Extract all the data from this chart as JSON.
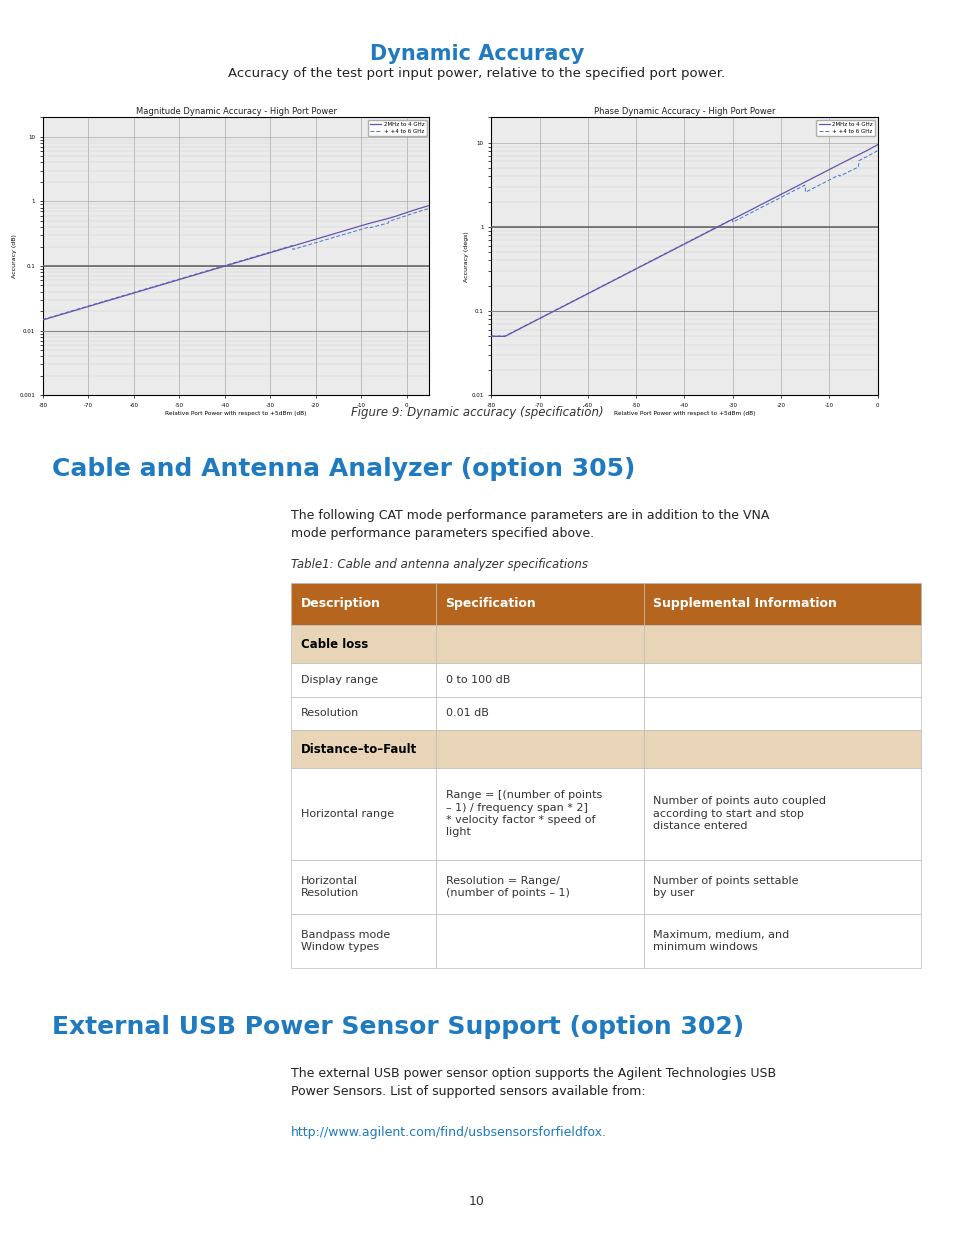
{
  "page_bg": "#ffffff",
  "title_dynamic": "Dynamic Accuracy",
  "title_dynamic_color": "#1f7abf",
  "title_dynamic_fontsize": 15,
  "subtitle_dynamic": "Accuracy of the test port input power, relative to the specified port power.",
  "subtitle_dynamic_fontsize": 9.5,
  "fig_caption": "Figure 9: Dynamic accuracy (specification)",
  "fig_caption_style": "italic",
  "fig_caption_fontsize": 8.5,
  "chart1_title": "Magnitude Dynamic Accuracy - High Port Power",
  "chart2_title": "Phase Dynamic Accuracy - High Port Power",
  "chart_title_fontsize": 6.0,
  "chart_ylabel1": "Accuracy (dB)",
  "chart_ylabel2": "Accuracy (degs)",
  "chart_xlabel": "Relative Port Power with respect to +5dBm (dB)",
  "legend_line1": "2MHz to 4 GHz",
  "legend_line2": "+ +4 to 6 GHz",
  "legend_color1": "#6655aa",
  "legend_color2": "#4477cc",
  "section1_title": "Cable and Antenna Analyzer (option 305)",
  "section1_title_color": "#1f7abf",
  "section1_title_fontsize": 18,
  "section1_body": "The following CAT mode performance parameters are in addition to the VNA\nmode performance parameters specified above.",
  "section1_body_fontsize": 9,
  "table_caption": "Table1: Cable and antenna analyzer specifications",
  "table_caption_fontsize": 8.5,
  "table_caption_style": "italic",
  "header_bg": "#b5651d",
  "header_text_color": "#ffffff",
  "subheader_bg": "#e8d5b7",
  "subheader_text_color": "#000000",
  "row_bg": "#ffffff",
  "table_headers": [
    "Description",
    "Specification",
    "Supplemental Information"
  ],
  "table_rows": [
    {
      "type": "subheader",
      "cols": [
        "Cable loss",
        "",
        ""
      ]
    },
    {
      "type": "data",
      "cols": [
        "Display range",
        "0 to 100 dB",
        ""
      ]
    },
    {
      "type": "data",
      "cols": [
        "Resolution",
        "0.01 dB",
        ""
      ]
    },
    {
      "type": "subheader",
      "cols": [
        "Distance–to–Fault",
        "",
        ""
      ]
    },
    {
      "type": "data",
      "cols": [
        "Horizontal range",
        "Range = [(number of points\n– 1) / frequency span * 2]\n* velocity factor * speed of\nlight",
        "Number of points auto coupled\naccording to start and stop\ndistance entered"
      ]
    },
    {
      "type": "data",
      "cols": [
        "Horizontal\nResolution",
        "Resolution = Range/\n(number of points – 1)",
        "Number of points settable\nby user"
      ]
    },
    {
      "type": "data",
      "cols": [
        "Bandpass mode\nWindow types",
        "",
        "Maximum, medium, and\nminimum windows"
      ]
    }
  ],
  "section2_title": "External USB Power Sensor Support (option 302)",
  "section2_title_color": "#1f7abf",
  "section2_title_fontsize": 18,
  "section2_body": "The external USB power sensor option supports the Agilent Technologies USB\nPower Sensors. List of supported sensors available from:",
  "section2_body_fontsize": 9,
  "section2_link": "http://www.agilent.com/find/usbsensorsforfieldfox.",
  "section2_link_color": "#1f7abf",
  "page_number": "10"
}
